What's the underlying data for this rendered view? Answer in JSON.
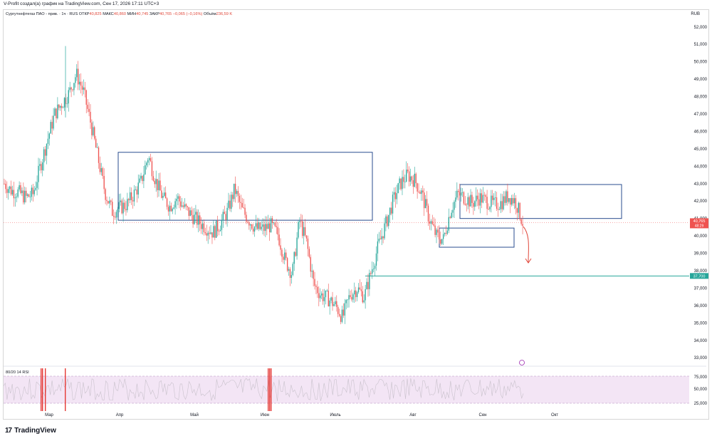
{
  "caption": "V-Profit создал(а) график на TradingView.com, Сен 17, 2026 17:11 UTC+3",
  "legend": {
    "symbol": "Сургутнефтегаз ПАО - прив. · 1ч · RUS",
    "open_label": "ОТКР",
    "open": "40,825",
    "high_label": "МАКС",
    "high": "40,860",
    "low_label": "МИН",
    "low": "40,745",
    "close_label": "ЗАКР",
    "close": "40,765",
    "change": "−0,065 (−0,16%)",
    "volume_label": "Объём",
    "volume": "236,59 K"
  },
  "currency": "RUB",
  "rsi_label": "80/20 14 RSI",
  "price_badge": {
    "price": "40,765",
    "countdown": "48:29"
  },
  "level_badge": "37,700",
  "logo_text": "TradingView",
  "colors": {
    "up": "#26a69a",
    "down": "#ef5350",
    "box": "#2a4d8f",
    "level": "#26a69a",
    "rsi_band": "#f3e5f5",
    "rsi_line": "#c9c2cc"
  },
  "chart_data": {
    "type": "line",
    "title": "Сургутнефтегаз ПАО - прив. · 1ч · RUS",
    "x_ticks": [
      "Мар",
      "Апр",
      "Май",
      "Июн",
      "Июль",
      "Авг",
      "Сен",
      "Окт"
    ],
    "y_ticks": [
      "52,000",
      "51,000",
      "50,000",
      "49,000",
      "48,000",
      "47,000",
      "46,000",
      "45,000",
      "44,000",
      "43,000",
      "42,000",
      "41,000",
      "40,000",
      "39,000",
      "38,000",
      "37,000",
      "36,000",
      "35,000",
      "34,000",
      "33,000"
    ],
    "ylim": [
      32600,
      52400
    ],
    "series": [
      {
        "values": [
          43.0,
          42.6,
          42.5,
          42.2,
          42.4,
          44.0,
          45.5,
          47.0,
          47.6,
          48.2,
          49.3,
          48.3,
          46.5,
          44.5,
          42.5,
          41.4,
          41.6,
          41.8,
          42.4,
          43.1,
          44.6,
          43.2,
          42.2,
          41.7,
          42.2,
          41.6,
          41.2,
          40.8,
          40.5,
          40.2,
          40.7,
          41.4,
          42.7,
          41.5,
          40.9,
          40.4,
          40.4,
          40.6,
          40.1,
          38.6,
          37.8,
          40.9,
          39.6,
          37.2,
          36.6,
          36.4,
          36.0,
          35.3,
          36.6,
          37.0,
          36.5,
          38.0,
          39.5,
          40.7,
          42.0,
          43.0,
          43.5,
          43.2,
          42.4,
          41.0,
          40.0,
          39.8,
          41.5,
          42.4,
          42.2,
          41.9,
          42.2,
          42.0,
          41.8,
          41.9,
          42.3,
          42.0,
          40.77
        ],
        "name": ""
      }
    ],
    "boxes": [
      {
        "x1": 0.233,
        "x2": 0.72,
        "y1": 44.8,
        "y2": 40.9
      },
      {
        "x1": 0.89,
        "x2": 1.2,
        "y1": 42.95,
        "y2": 41.0
      },
      {
        "x1": 0.855,
        "x2": 1.0,
        "y1": 40.45,
        "y2": 39.35
      }
    ],
    "support_level": 37.7,
    "rsi": {
      "upper": 80,
      "lower": 20,
      "ticks": [
        "75,000",
        "50,000",
        "25,000"
      ]
    }
  }
}
